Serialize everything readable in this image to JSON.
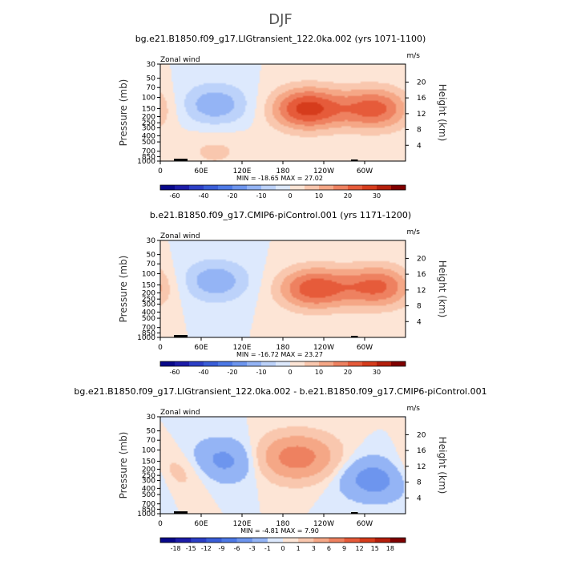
{
  "figure": {
    "title": "DJF",
    "colors": {
      "land": "#000000",
      "frame": "#000000"
    }
  },
  "chart_data": [
    {
      "type": "heatmap",
      "title": "bg.e21.B1850.f09_g17.LIGtransient_122.0ka.002 (yrs 1071-1100)",
      "left_label": "Zonal wind",
      "right_label": "m/s",
      "ylabel": "Pressure (mb)",
      "ylabel_right": "Height (km)",
      "x_ticks": [
        "0",
        "60E",
        "120E",
        "180",
        "120W",
        "60W"
      ],
      "x_tick_values": [
        0,
        60,
        120,
        180,
        240,
        300
      ],
      "xlim": [
        0,
        360
      ],
      "y_ticks": [
        "30",
        "50",
        "70",
        "100",
        "150",
        "200",
        "250",
        "300",
        "400",
        "500",
        "700",
        "850",
        "1000"
      ],
      "y_tick_values": [
        30,
        50,
        70,
        100,
        150,
        200,
        250,
        300,
        400,
        500,
        700,
        850,
        1000
      ],
      "ylim": [
        1000,
        30
      ],
      "yscale": "log",
      "height_ticks": [
        "4",
        "8",
        "12",
        "16",
        "20"
      ],
      "stats": "MIN = -18.65   MAX =  27.02",
      "min": -18.65,
      "max": 27.02,
      "colorbar": {
        "labels": [
          "-60",
          "-40",
          "-20",
          "-10",
          "0",
          "10",
          "20",
          "30"
        ],
        "levels": [
          -70,
          -60,
          -50,
          -40,
          -30,
          -20,
          -15,
          -10,
          -5,
          0,
          5,
          10,
          15,
          20,
          25,
          30,
          35
        ],
        "colors": [
          "#08088a",
          "#1c1ca8",
          "#2c3fc6",
          "#3a5ed8",
          "#4d79e6",
          "#6d95ee",
          "#94b4f5",
          "#bcd2fa",
          "#dde9fd",
          "#fde5d6",
          "#f9c7ae",
          "#f5a786",
          "#ee8160",
          "#e65b3a",
          "#d63c1c",
          "#b41f0c",
          "#800000"
        ]
      },
      "features": [
        {
          "lon": 80,
          "p": 130,
          "value": -14
        },
        {
          "lon": 215,
          "p": 150,
          "value": 27.02
        },
        {
          "lon": 315,
          "p": 150,
          "value": 22
        },
        {
          "lon": 80,
          "p": 700,
          "value": 6
        }
      ]
    },
    {
      "type": "heatmap",
      "title": "b.e21.B1850.f09_g17.CMIP6-piControl.001 (yrs 1171-1200)",
      "left_label": "Zonal wind",
      "right_label": "m/s",
      "ylabel": "Pressure (mb)",
      "ylabel_right": "Height (km)",
      "x_ticks": [
        "0",
        "60E",
        "120E",
        "180",
        "120W",
        "60W"
      ],
      "x_tick_values": [
        0,
        60,
        120,
        180,
        240,
        300
      ],
      "xlim": [
        0,
        360
      ],
      "y_ticks": [
        "30",
        "50",
        "70",
        "100",
        "150",
        "200",
        "250",
        "300",
        "400",
        "500",
        "700",
        "850",
        "1000"
      ],
      "y_tick_values": [
        30,
        50,
        70,
        100,
        150,
        200,
        250,
        300,
        400,
        500,
        700,
        850,
        1000
      ],
      "ylim": [
        1000,
        30
      ],
      "yscale": "log",
      "height_ticks": [
        "4",
        "8",
        "12",
        "16",
        "20"
      ],
      "stats": "MIN = -16.72   MAX =  23.27",
      "min": -16.72,
      "max": 23.27,
      "colorbar": {
        "labels": [
          "-60",
          "-40",
          "-20",
          "-10",
          "0",
          "10",
          "20",
          "30"
        ],
        "levels": [
          -70,
          -60,
          -50,
          -40,
          -30,
          -20,
          -15,
          -10,
          -5,
          0,
          5,
          10,
          15,
          20,
          25,
          30,
          35
        ],
        "colors": [
          "#08088a",
          "#1c1ca8",
          "#2c3fc6",
          "#3a5ed8",
          "#4d79e6",
          "#6d95ee",
          "#94b4f5",
          "#bcd2fa",
          "#dde9fd",
          "#fde5d6",
          "#f9c7ae",
          "#f5a786",
          "#ee8160",
          "#e65b3a",
          "#d63c1c",
          "#b41f0c",
          "#800000"
        ]
      },
      "features": [
        {
          "lon": 80,
          "p": 130,
          "value": -14
        },
        {
          "lon": 225,
          "p": 170,
          "value": 23.27
        },
        {
          "lon": 320,
          "p": 160,
          "value": 21
        }
      ]
    },
    {
      "type": "heatmap",
      "title": "bg.e21.B1850.f09_g17.LIGtransient_122.0ka.002 - b.e21.B1850.f09_g17.CMIP6-piControl.001",
      "left_label": "Zonal wind",
      "right_label": "m/s",
      "ylabel": "Pressure (mb)",
      "ylabel_right": "Height (km)",
      "x_ticks": [
        "0",
        "60E",
        "120E",
        "180",
        "120W",
        "60W"
      ],
      "x_tick_values": [
        0,
        60,
        120,
        180,
        240,
        300
      ],
      "xlim": [
        0,
        360
      ],
      "y_ticks": [
        "30",
        "50",
        "70",
        "100",
        "150",
        "200",
        "250",
        "300",
        "400",
        "500",
        "700",
        "850",
        "1000"
      ],
      "y_tick_values": [
        30,
        50,
        70,
        100,
        150,
        200,
        250,
        300,
        400,
        500,
        700,
        850,
        1000
      ],
      "ylim": [
        1000,
        30
      ],
      "yscale": "log",
      "height_ticks": [
        "4",
        "8",
        "12",
        "16",
        "20"
      ],
      "stats": "MIN =  -4.81   MAX =   7.90",
      "min": -4.81,
      "max": 7.9,
      "colorbar": {
        "labels": [
          "-18",
          "-15",
          "-12",
          "-9",
          "-6",
          "-3",
          "-1",
          "0",
          "1",
          "3",
          "6",
          "9",
          "12",
          "15",
          "18"
        ],
        "levels": [
          -21,
          -18,
          -15,
          -12,
          -9,
          -6,
          -3,
          -1,
          0,
          1,
          3,
          6,
          9,
          12,
          15,
          18
        ],
        "colors": [
          "#08088a",
          "#1c1ca8",
          "#2c3fc6",
          "#3a5ed8",
          "#4d79e6",
          "#6d95ee",
          "#94b4f5",
          "#dde9fd",
          "#fde5d6",
          "#f9c7ae",
          "#f5a786",
          "#ee8160",
          "#e65b3a",
          "#d63c1c",
          "#b41f0c",
          "#800000"
        ]
      },
      "features": [
        {
          "lon": 90,
          "p": 150,
          "value": -4
        },
        {
          "lon": 200,
          "p": 130,
          "value": 7.9
        },
        {
          "lon": 320,
          "p": 280,
          "value": -4.81
        },
        {
          "lon": 20,
          "p": 220,
          "value": 3
        }
      ]
    }
  ]
}
